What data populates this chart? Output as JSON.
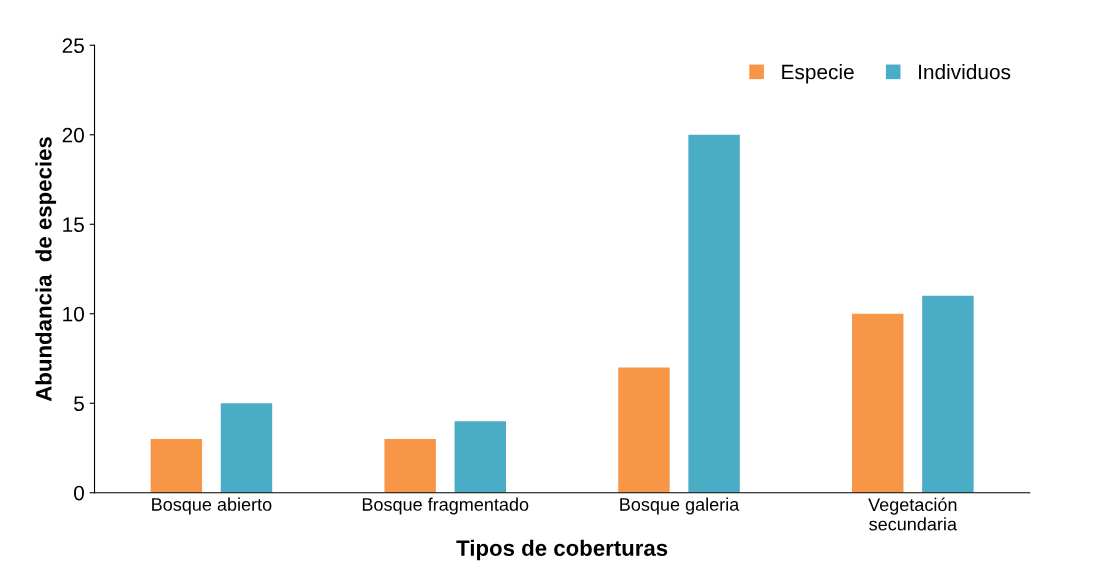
{
  "chart_data": {
    "type": "bar",
    "xlabel": "Tipos de coberturas",
    "ylabel": "Abundancia  de especies",
    "categories": [
      "Bosque abierto",
      "Bosque fragmentado",
      "Bosque galeria",
      "Vegetación\nsecundaria"
    ],
    "series": [
      {
        "name": "Especie",
        "color": "#f79646",
        "values": [
          3,
          3,
          7,
          10
        ]
      },
      {
        "name": "Individuos",
        "color": "#4bacc6",
        "values": [
          5,
          4,
          20,
          11
        ]
      }
    ],
    "ylim": [
      0,
      25
    ],
    "yticks": [
      0,
      5,
      10,
      15,
      20,
      25
    ],
    "grid": false,
    "legend": "top right"
  }
}
